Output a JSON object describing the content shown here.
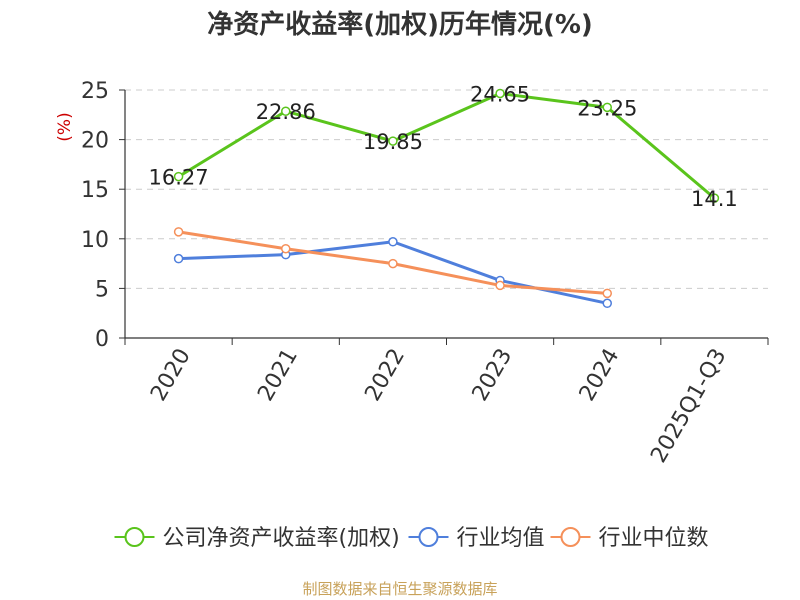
{
  "chart_data": {
    "type": "line",
    "title": "净资产收益率(加权)历年情况(%)",
    "ylabel": "(%)",
    "ylim": [
      0,
      25
    ],
    "yticks": [
      0,
      5,
      10,
      15,
      20,
      25
    ],
    "grid": true,
    "legend_position": "bottom",
    "categories": [
      "2020",
      "2021",
      "2022",
      "2023",
      "2024",
      "2025Q1-Q3"
    ],
    "series": [
      {
        "name": "公司净资产收益率(加权)",
        "color": "#5ac41c",
        "labeled": true,
        "values": [
          16.27,
          22.86,
          19.85,
          24.65,
          23.25,
          14.1
        ]
      },
      {
        "name": "行业均值",
        "color": "#4f7fdc",
        "labeled": false,
        "values": [
          8.0,
          8.4,
          9.7,
          5.8,
          3.5,
          null
        ]
      },
      {
        "name": "行业中位数",
        "color": "#f5905a",
        "labeled": false,
        "values": [
          10.7,
          9.0,
          7.5,
          5.3,
          4.5,
          null
        ]
      }
    ],
    "colors": {
      "ylabel": "#cc0000",
      "grid": "#cccccc",
      "axis": "#333333",
      "text": "#333333"
    }
  },
  "source": "制图数据来自恒生聚源数据库"
}
